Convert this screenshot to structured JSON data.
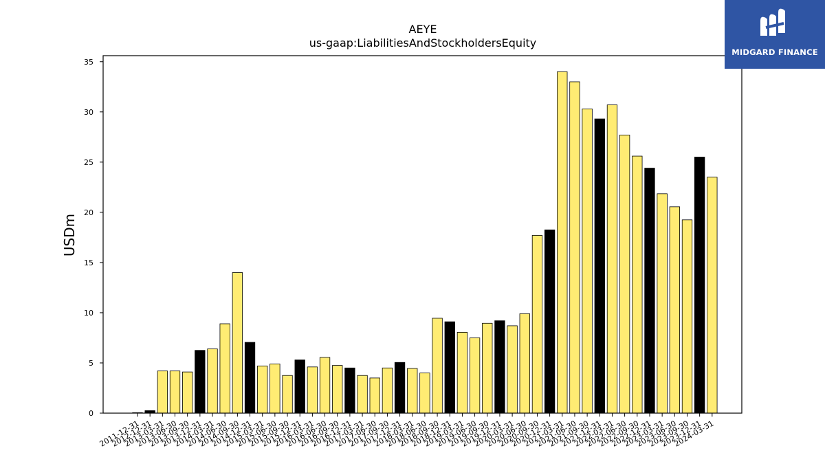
{
  "chart_data": {
    "type": "bar",
    "title": "AEYE",
    "subtitle": "us-gaap:LiabilitiesAndStockholdersEquity",
    "xlabel": "",
    "ylabel": "USDm",
    "ylim": [
      0,
      35.6
    ],
    "yticks": [
      0,
      5,
      10,
      15,
      20,
      25,
      30,
      35
    ],
    "categories": [
      "2011-12-31",
      "2012-12-31",
      "2013-03-31",
      "2013-06-30",
      "2013-09-30",
      "2013-12-31",
      "2014-03-31",
      "2014-06-30",
      "2014-09-30",
      "2014-12-31",
      "2015-03-31",
      "2015-06-30",
      "2015-09-30",
      "2015-12-31",
      "2016-03-31",
      "2016-06-30",
      "2016-09-30",
      "2016-12-31",
      "2017-03-31",
      "2017-06-30",
      "2017-09-30",
      "2017-12-31",
      "2018-03-31",
      "2018-06-30",
      "2018-09-30",
      "2018-12-31",
      "2019-03-31",
      "2019-06-30",
      "2019-09-30",
      "2019-12-31",
      "2020-03-31",
      "2020-06-30",
      "2020-09-30",
      "2020-12-31",
      "2021-03-31",
      "2021-06-30",
      "2021-09-30",
      "2021-12-31",
      "2022-03-31",
      "2022-06-30",
      "2022-09-30",
      "2022-12-31",
      "2023-03-31",
      "2023-06-30",
      "2023-09-30",
      "2023-12-31",
      "2024-03-31"
    ],
    "values": [
      0.05,
      0.25,
      4.2,
      4.2,
      4.1,
      6.25,
      6.4,
      8.9,
      14.0,
      7.05,
      4.7,
      4.9,
      3.75,
      5.3,
      4.6,
      5.55,
      4.75,
      4.5,
      3.75,
      3.5,
      4.5,
      5.05,
      4.45,
      4.0,
      9.45,
      9.1,
      8.05,
      7.5,
      8.95,
      9.2,
      8.7,
      9.9,
      17.7,
      18.25,
      34.0,
      33.0,
      30.3,
      29.3,
      30.7,
      27.7,
      25.6,
      24.4,
      21.85,
      20.55,
      19.25,
      25.5,
      23.5
    ],
    "year_end": [
      true,
      true,
      false,
      false,
      false,
      true,
      false,
      false,
      false,
      true,
      false,
      false,
      false,
      true,
      false,
      false,
      false,
      true,
      false,
      false,
      false,
      true,
      false,
      false,
      false,
      true,
      false,
      false,
      false,
      true,
      false,
      false,
      false,
      true,
      false,
      false,
      false,
      true,
      false,
      false,
      false,
      true,
      false,
      false,
      false,
      true,
      false
    ],
    "colors": {
      "quarter": "#ffec73",
      "year_end": "#000000",
      "edge": "#000000"
    },
    "grid": false,
    "legend": "none"
  },
  "logo": {
    "text": "MIDGARD FINANCE",
    "color": "#2f55a4"
  }
}
